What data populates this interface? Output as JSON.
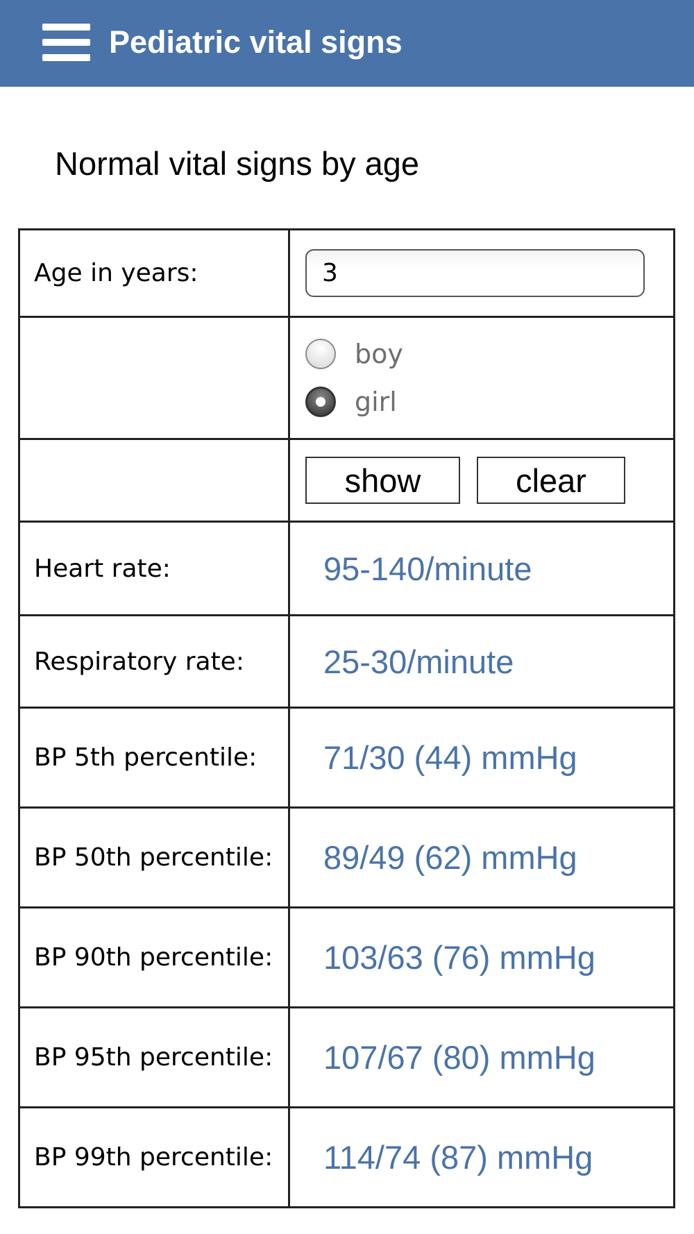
{
  "header": {
    "title": "Pediatric vital signs",
    "menu_icon": "hamburger-menu-icon",
    "background_color": "#4a73aa"
  },
  "page": {
    "heading": "Normal vital signs by age"
  },
  "form": {
    "age_label": "Age in years:",
    "age_value": "3",
    "sex_options": [
      {
        "label": "boy",
        "checked": false
      },
      {
        "label": "girl",
        "checked": true
      }
    ],
    "show_label": "show",
    "clear_label": "clear"
  },
  "results": [
    {
      "label": "Heart rate:",
      "value": "95-140/minute"
    },
    {
      "label": "Respiratory rate:",
      "value": "25-30/minute"
    },
    {
      "label": "BP 5th percentile:",
      "value": "71/30 (44) mmHg"
    },
    {
      "label": "BP 50th percentile:",
      "value": "89/49 (62) mmHg"
    },
    {
      "label": "BP 90th percentile:",
      "value": "103/63 (76) mmHg"
    },
    {
      "label": "BP 95th percentile:",
      "value": "107/67 (80) mmHg"
    },
    {
      "label": "BP 99th percentile:",
      "value": "114/74 (87) mmHg"
    }
  ],
  "colors": {
    "accent": "#4a73aa",
    "value_text": "#4a73aa"
  }
}
